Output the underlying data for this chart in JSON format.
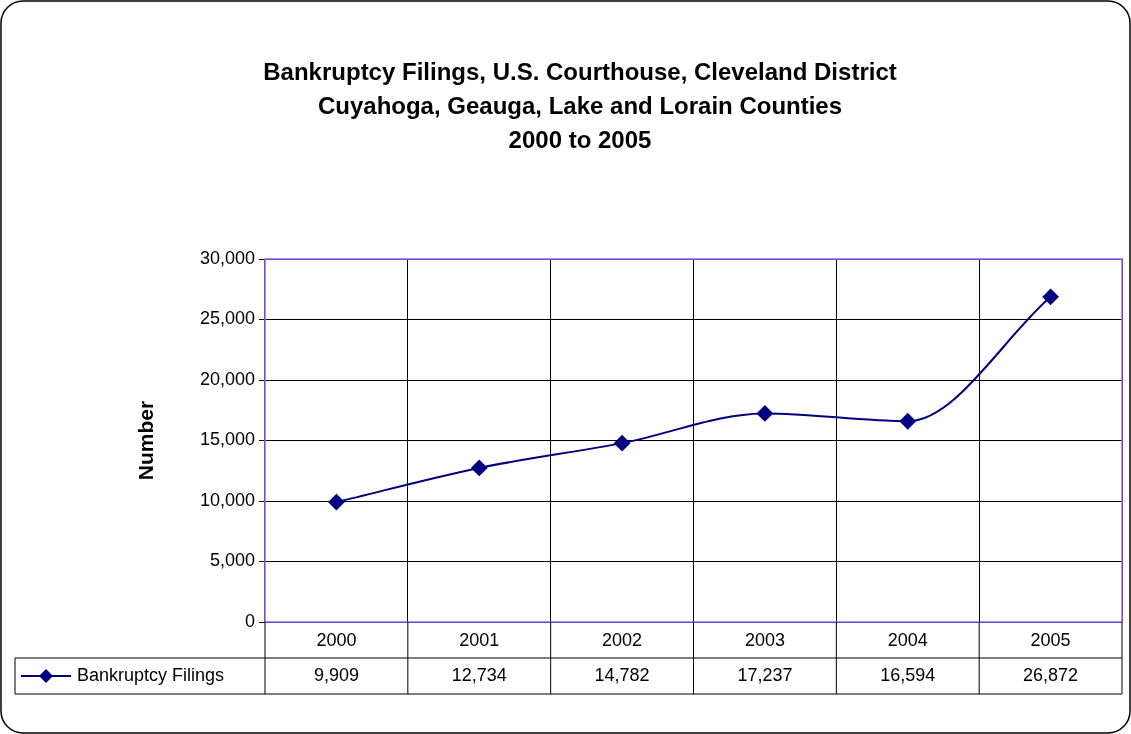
{
  "chart_data": {
    "type": "line",
    "title": "Bankruptcy Filings, U.S. Courthouse, Cleveland District\nCuyahoga, Geauga, Lake and Lorain Counties\n2000 to 2005",
    "ylabel": "Number",
    "categories": [
      "2000",
      "2001",
      "2002",
      "2003",
      "2004",
      "2005"
    ],
    "series": [
      {
        "name": "Bankruptcy Filings",
        "color": "#000080",
        "values": [
          9909,
          12734,
          14782,
          17237,
          16594,
          26872
        ],
        "value_labels": [
          "9,909",
          "12,734",
          "14,782",
          "17,237",
          "16,594",
          "26,872"
        ]
      }
    ],
    "ylim": [
      0,
      30000
    ],
    "yticks": [
      0,
      {
        "value": 5000,
        "label": "5,000"
      },
      {
        "value": 10000,
        "label": "10,000"
      },
      {
        "value": 15000,
        "label": "15,000"
      },
      {
        "value": 20000,
        "label": "20,000"
      },
      {
        "value": 25000,
        "label": "25,000"
      },
      {
        "value": 30000,
        "label": "30,000"
      }
    ],
    "grid": true,
    "legend": "bottom",
    "marker": "diamond",
    "line_style": "solid"
  }
}
